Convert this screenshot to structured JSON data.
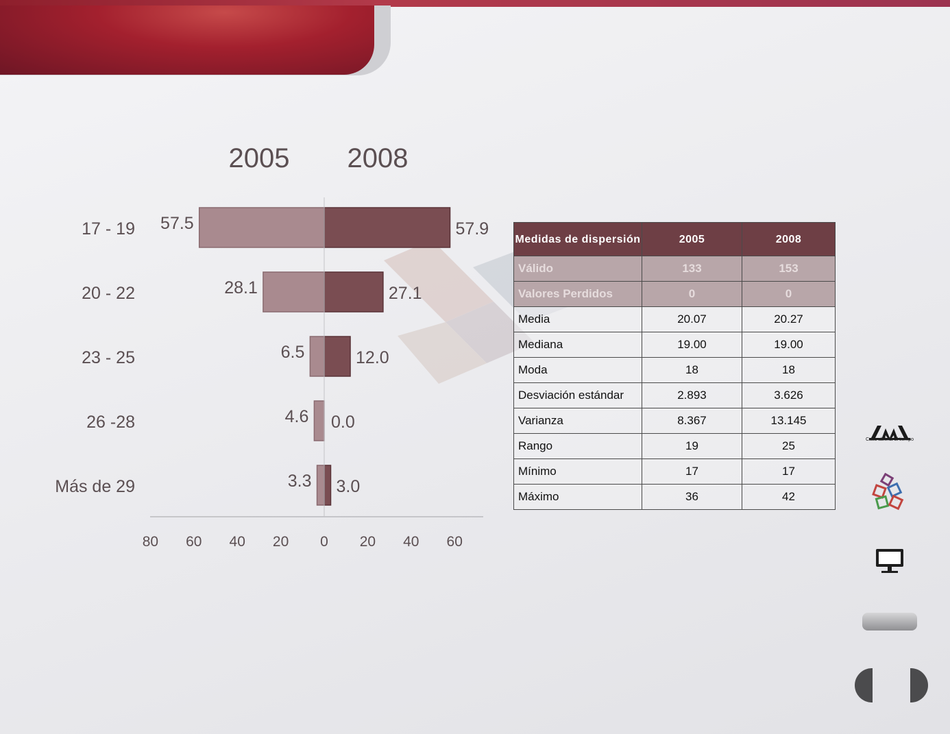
{
  "chart_data": {
    "type": "bar",
    "orientation": "horizontal-diverging",
    "series": [
      {
        "name": "2005",
        "values": [
          57.5,
          28.1,
          6.5,
          4.6,
          3.3
        ],
        "color": "#a98a8f",
        "side": "left"
      },
      {
        "name": "2008",
        "values": [
          57.9,
          27.1,
          12.0,
          0.0,
          3.0
        ],
        "color": "#7a4d52",
        "side": "right"
      }
    ],
    "categories": [
      "17 - 19",
      "20 - 22",
      "23 - 25",
      "26 -28",
      "Más de 29"
    ],
    "value_labels": {
      "left": [
        "57.5",
        "28.1",
        "6.5",
        "4.6",
        "3.3"
      ],
      "right": [
        "57.9",
        "27.1",
        "12.0",
        "0.0",
        "3.0"
      ]
    },
    "axis_ticks": [
      "80",
      "60",
      "40",
      "20",
      "0",
      "20",
      "40",
      "60"
    ],
    "xlim": [
      -80,
      73
    ],
    "grid": false
  },
  "table": {
    "headers": [
      "Medidas de dispersión",
      "2005",
      "2008"
    ],
    "rows": [
      {
        "label": "Válido",
        "v2005": "133",
        "v2008": "153",
        "faded": true
      },
      {
        "label": "Valores Perdidos",
        "v2005": "0",
        "v2008": "0",
        "faded": true
      },
      {
        "label": "Media",
        "v2005": "20.07",
        "v2008": "20.27"
      },
      {
        "label": "Mediana",
        "v2005": "19.00",
        "v2008": "19.00"
      },
      {
        "label": "Moda",
        "v2005": "18",
        "v2008": "18"
      },
      {
        "label": "Desviación estándar",
        "v2005": "2.893",
        "v2008": "3.626"
      },
      {
        "label": "Varianza",
        "v2005": "8.367",
        "v2008": "13.145"
      },
      {
        "label": "Rango",
        "v2005": "19",
        "v2008": "25"
      },
      {
        "label": "Mínimo",
        "v2005": "17",
        "v2008": "17"
      },
      {
        "label": "Máximo",
        "v2005": "36",
        "v2008": "42"
      }
    ]
  },
  "sidebar": {
    "logo_caption": "Casa abierta al tiempo"
  },
  "colors": {
    "accent": "#a3202e",
    "table_header": "#6e3f45"
  }
}
